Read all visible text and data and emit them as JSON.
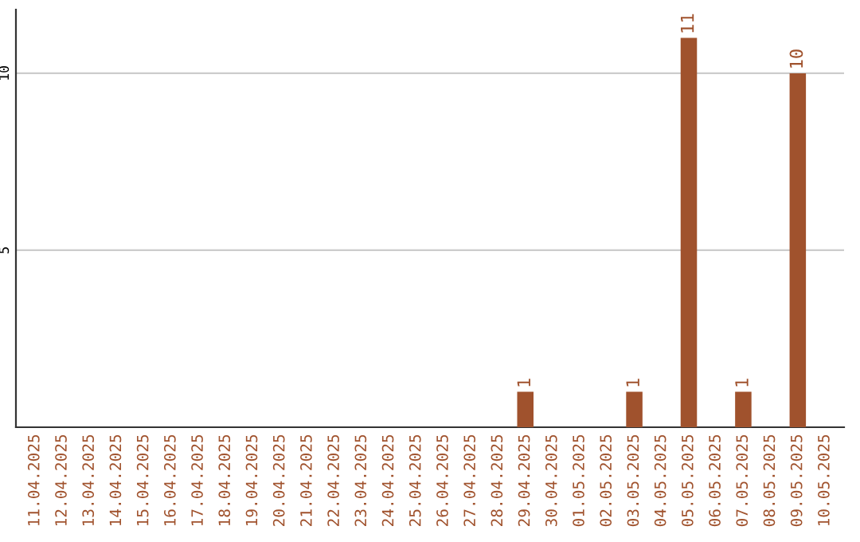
{
  "chart_data": {
    "type": "bar",
    "categories": [
      "11.04.2025",
      "12.04.2025",
      "13.04.2025",
      "14.04.2025",
      "15.04.2025",
      "16.04.2025",
      "17.04.2025",
      "18.04.2025",
      "19.04.2025",
      "20.04.2025",
      "21.04.2025",
      "22.04.2025",
      "23.04.2025",
      "24.04.2025",
      "25.04.2025",
      "26.04.2025",
      "27.04.2025",
      "28.04.2025",
      "29.04.2025",
      "30.04.2025",
      "01.05.2025",
      "02.05.2025",
      "03.05.2025",
      "04.05.2025",
      "05.05.2025",
      "06.05.2025",
      "07.05.2025",
      "08.05.2025",
      "09.05.2025",
      "10.05.2025"
    ],
    "series": [
      {
        "color": "#a0522d",
        "values": [
          0,
          0,
          0,
          0,
          0,
          0,
          0,
          0,
          0,
          0,
          0,
          0,
          0,
          0,
          0,
          0,
          0,
          0,
          1,
          0,
          0,
          0,
          1,
          0,
          11,
          0,
          1,
          0,
          10,
          0
        ],
        "value_labels": [
          null,
          null,
          null,
          null,
          null,
          null,
          null,
          null,
          null,
          null,
          null,
          null,
          null,
          null,
          null,
          null,
          null,
          null,
          "1",
          null,
          null,
          null,
          "1",
          null,
          "11",
          null,
          "1",
          null,
          "10",
          null
        ]
      }
    ],
    "ylim": [
      0,
      11.8
    ],
    "yticks": [
      5,
      10
    ],
    "grid": "y",
    "legend": false
  }
}
